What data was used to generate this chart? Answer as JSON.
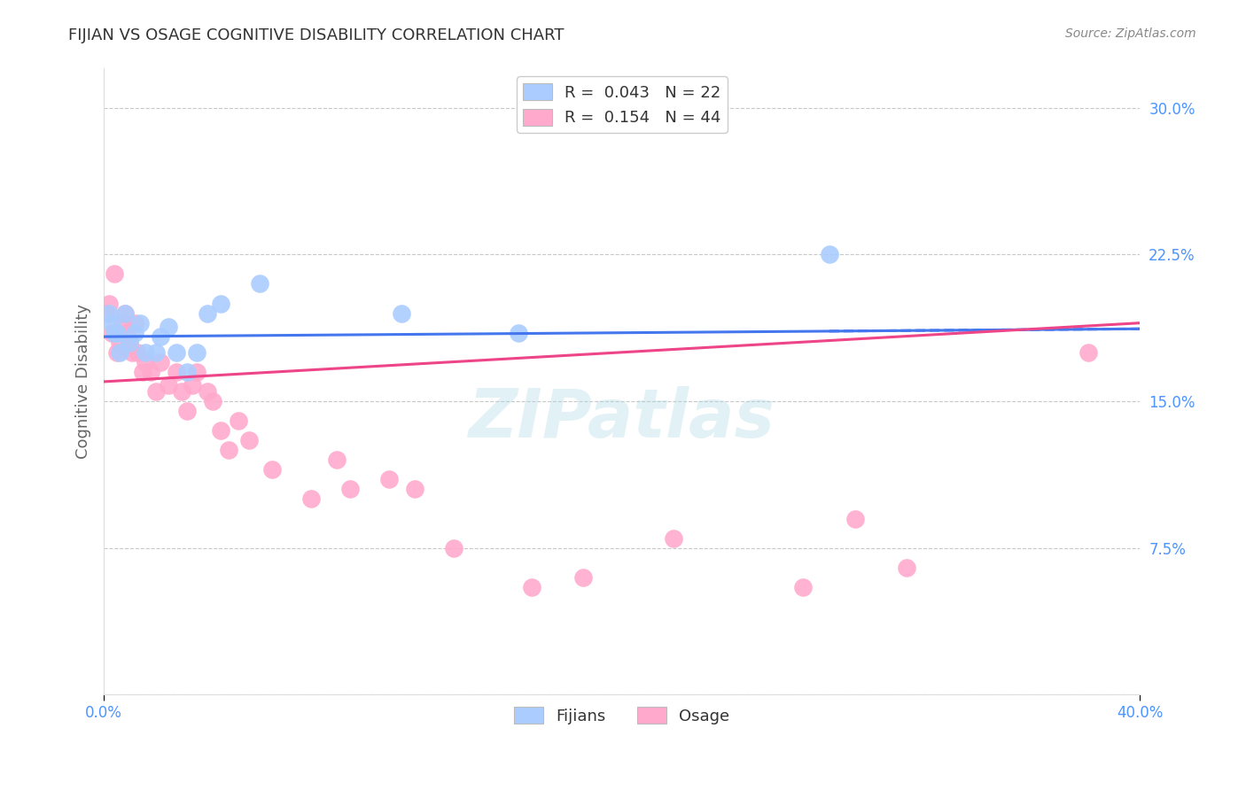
{
  "title": "FIJIAN VS OSAGE COGNITIVE DISABILITY CORRELATION CHART",
  "source_text": "Source: ZipAtlas.com",
  "ylabel": "Cognitive Disability",
  "xlim": [
    0.0,
    0.4
  ],
  "ylim": [
    0.0,
    0.32
  ],
  "yticks": [
    0.0,
    0.075,
    0.15,
    0.225,
    0.3
  ],
  "ytick_labels": [
    "",
    "7.5%",
    "15.0%",
    "22.5%",
    "30.0%"
  ],
  "background_color": "#ffffff",
  "grid_color": "#c8c8c8",
  "title_color": "#333333",
  "axis_label_color": "#666666",
  "tick_color": "#4d94ff",
  "fijian_color": "#aaccff",
  "osage_color": "#ffaacc",
  "fijian_line_color": "#4477ee",
  "osage_line_color": "#ee4488",
  "legend_fijian_label": "R =  0.043   N = 22",
  "legend_osage_label": "R =  0.154   N = 44",
  "watermark": "ZIPatlas",
  "fijian_x": [
    0.002,
    0.003,
    0.004,
    0.005,
    0.006,
    0.008,
    0.01,
    0.012,
    0.014,
    0.016,
    0.02,
    0.022,
    0.025,
    0.028,
    0.032,
    0.036,
    0.04,
    0.045,
    0.06,
    0.115,
    0.16,
    0.28
  ],
  "fijian_y": [
    0.195,
    0.19,
    0.185,
    0.185,
    0.175,
    0.195,
    0.18,
    0.185,
    0.19,
    0.175,
    0.175,
    0.183,
    0.188,
    0.175,
    0.165,
    0.175,
    0.195,
    0.2,
    0.21,
    0.195,
    0.185,
    0.225
  ],
  "osage_x": [
    0.001,
    0.002,
    0.003,
    0.004,
    0.005,
    0.006,
    0.007,
    0.008,
    0.009,
    0.01,
    0.011,
    0.012,
    0.013,
    0.015,
    0.016,
    0.018,
    0.02,
    0.022,
    0.025,
    0.028,
    0.03,
    0.032,
    0.034,
    0.036,
    0.04,
    0.042,
    0.045,
    0.048,
    0.052,
    0.056,
    0.065,
    0.08,
    0.09,
    0.095,
    0.11,
    0.12,
    0.135,
    0.165,
    0.185,
    0.22,
    0.27,
    0.29,
    0.31,
    0.38
  ],
  "osage_y": [
    0.195,
    0.2,
    0.185,
    0.215,
    0.175,
    0.18,
    0.19,
    0.195,
    0.185,
    0.18,
    0.175,
    0.19,
    0.175,
    0.165,
    0.17,
    0.165,
    0.155,
    0.17,
    0.158,
    0.165,
    0.155,
    0.145,
    0.158,
    0.165,
    0.155,
    0.15,
    0.135,
    0.125,
    0.14,
    0.13,
    0.115,
    0.1,
    0.12,
    0.105,
    0.11,
    0.105,
    0.075,
    0.055,
    0.06,
    0.08,
    0.055,
    0.09,
    0.065,
    0.175
  ]
}
